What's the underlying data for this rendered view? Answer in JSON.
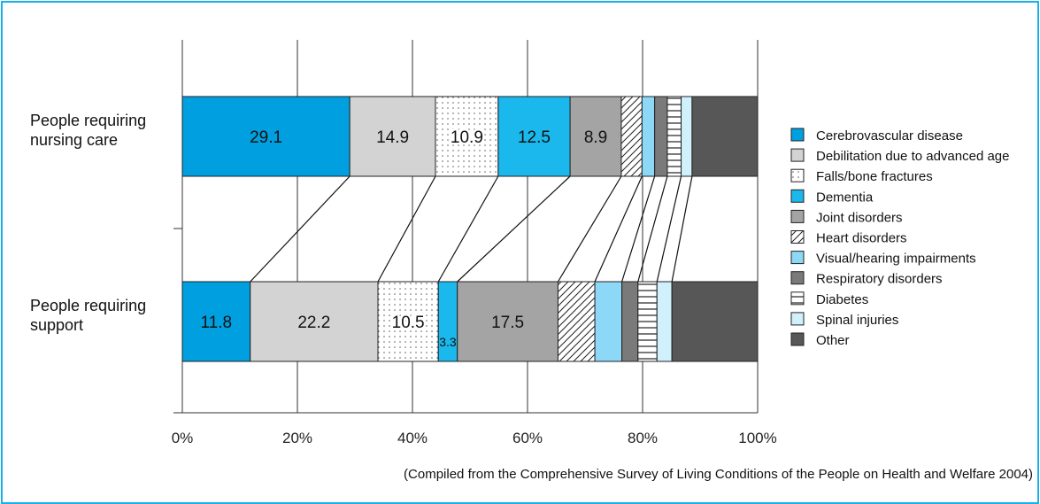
{
  "chart_data": {
    "type": "bar",
    "stacked": true,
    "orientation": "horizontal",
    "x_axis": {
      "min": 0,
      "max": 100,
      "ticks": [
        "0%",
        "20%",
        "40%",
        "60%",
        "80%",
        "100%"
      ]
    },
    "grid": true,
    "legend_position": "right",
    "categories": [
      "People requiring nursing care",
      "People requiring support"
    ],
    "category_labels": [
      [
        "People requiring",
        "nursing care"
      ],
      [
        "People requiring",
        "support"
      ]
    ],
    "series": [
      {
        "name": "Cerebrovascular disease",
        "values": [
          29.1,
          11.8
        ],
        "labels": [
          "29.1",
          "11.8"
        ],
        "fill": "#00a0e0",
        "pattern": "solid"
      },
      {
        "name": "Debilitation due to advanced age",
        "values": [
          14.9,
          22.2
        ],
        "labels": [
          "14.9",
          "22.2"
        ],
        "fill": "#d3d3d3",
        "pattern": "solid"
      },
      {
        "name": "Falls/bone fractures",
        "values": [
          10.9,
          10.5
        ],
        "labels": [
          "10.9",
          "10.5"
        ],
        "fill": "#ffffff",
        "pattern": "dots"
      },
      {
        "name": "Dementia",
        "values": [
          12.5,
          3.3
        ],
        "labels": [
          "12.5",
          "3.3"
        ],
        "fill": "#1ab8ec",
        "pattern": "solid"
      },
      {
        "name": "Joint disorders",
        "values": [
          8.9,
          17.5
        ],
        "labels": [
          "8.9",
          "17.5"
        ],
        "fill": "#a4a4a4",
        "pattern": "solid"
      },
      {
        "name": "Heart disorders",
        "values": [
          3.6,
          6.4
        ],
        "labels": [
          "",
          ""
        ],
        "fill": "#ffffff",
        "pattern": "diagonal"
      },
      {
        "name": "Visual/hearing impairments",
        "values": [
          2.2,
          4.7
        ],
        "labels": [
          "",
          ""
        ],
        "fill": "#8dd8f6",
        "pattern": "solid"
      },
      {
        "name": "Respiratory disorders",
        "values": [
          2.2,
          2.8
        ],
        "labels": [
          "",
          ""
        ],
        "fill": "#7a7a7a",
        "pattern": "solid"
      },
      {
        "name": "Diabetes",
        "values": [
          2.4,
          3.3
        ],
        "labels": [
          "",
          ""
        ],
        "fill": "#ffffff",
        "pattern": "horizontal"
      },
      {
        "name": "Spinal injuries",
        "values": [
          1.9,
          2.6
        ],
        "labels": [
          "",
          ""
        ],
        "fill": "#d0f0fc",
        "pattern": "solid"
      },
      {
        "name": "Other",
        "values": [
          11.4,
          14.9
        ],
        "labels": [
          "",
          ""
        ],
        "fill": "#575757",
        "pattern": "solid"
      }
    ]
  },
  "source_note": "(Compiled from the Comprehensive Survey of Living Conditions of the People on Health and Welfare 2004)"
}
